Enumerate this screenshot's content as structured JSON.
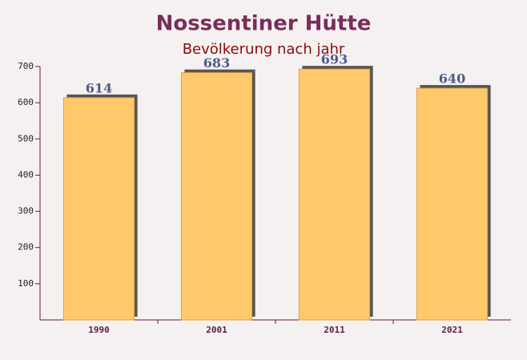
{
  "chart_data": {
    "type": "bar",
    "title": "Nossentiner Hütte",
    "subtitle": "Bevölkerung nach jahr",
    "categories": [
      "1990",
      "2001",
      "2011",
      "2021"
    ],
    "values": [
      614,
      683,
      693,
      640
    ],
    "color": "#ffc96b",
    "ylim": [
      0,
      700
    ],
    "yticks": [
      100,
      200,
      300,
      400,
      500,
      600,
      700
    ],
    "grid": false
  }
}
